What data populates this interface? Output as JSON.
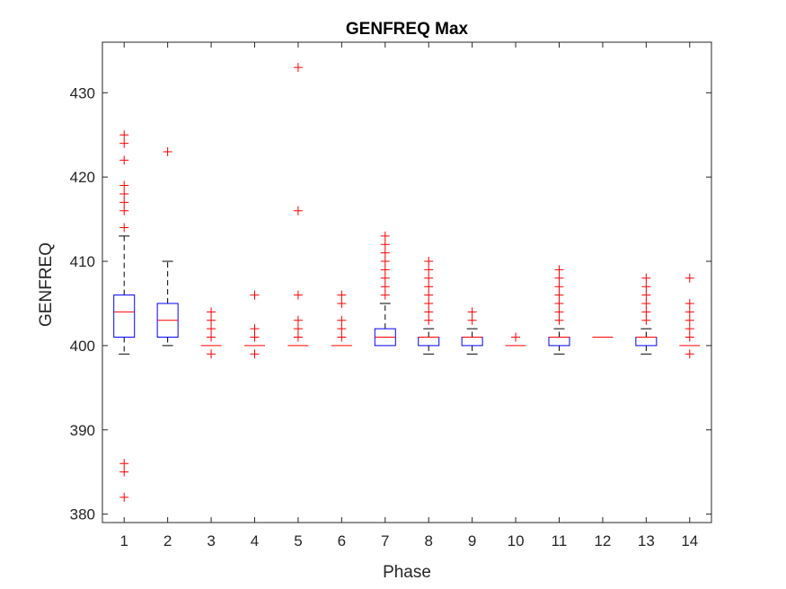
{
  "chart_data": {
    "type": "boxplot",
    "title": "GENFREQ Max",
    "xlabel": "Phase",
    "ylabel": "GENFREQ",
    "ylim": [
      379,
      436
    ],
    "yticks": [
      "380",
      "390",
      "400",
      "410",
      "420",
      "430"
    ],
    "categories": [
      "1",
      "2",
      "3",
      "4",
      "5",
      "6",
      "7",
      "8",
      "9",
      "10",
      "11",
      "12",
      "13",
      "14"
    ],
    "boxes": [
      {
        "category": "1",
        "whisker_low": 399,
        "q1": 401,
        "median": 404,
        "q3": 406,
        "whisker_high": 413,
        "outliers": [
          414,
          416,
          417,
          418,
          419,
          422,
          424,
          425,
          382,
          385,
          386
        ]
      },
      {
        "category": "2",
        "whisker_low": 400,
        "q1": 401,
        "median": 403,
        "q3": 405,
        "whisker_high": 410,
        "outliers": [
          423
        ]
      },
      {
        "category": "3",
        "whisker_low": 400,
        "q1": 400,
        "median": 400,
        "q3": 400,
        "whisker_high": 400,
        "outliers": [
          399,
          401,
          402,
          403,
          404
        ]
      },
      {
        "category": "4",
        "whisker_low": 400,
        "q1": 400,
        "median": 400,
        "q3": 400,
        "whisker_high": 400,
        "outliers": [
          399,
          401,
          402,
          406
        ]
      },
      {
        "category": "5",
        "whisker_low": 400,
        "q1": 400,
        "median": 400,
        "q3": 400,
        "whisker_high": 400,
        "outliers": [
          401,
          402,
          403,
          406,
          416,
          433
        ]
      },
      {
        "category": "6",
        "whisker_low": 400,
        "q1": 400,
        "median": 400,
        "q3": 400,
        "whisker_high": 400,
        "outliers": [
          401,
          402,
          403,
          405,
          406
        ]
      },
      {
        "category": "7",
        "whisker_low": 400,
        "q1": 400,
        "median": 401,
        "q3": 402,
        "whisker_high": 405,
        "outliers": [
          406,
          407,
          408,
          409,
          410,
          411,
          412,
          413
        ]
      },
      {
        "category": "8",
        "whisker_low": 399,
        "q1": 400,
        "median": 401,
        "q3": 401,
        "whisker_high": 402,
        "outliers": [
          403,
          404,
          405,
          406,
          407,
          408,
          409,
          410
        ]
      },
      {
        "category": "9",
        "whisker_low": 399,
        "q1": 400,
        "median": 401,
        "q3": 401,
        "whisker_high": 402,
        "outliers": [
          403,
          404
        ]
      },
      {
        "category": "10",
        "whisker_low": 400,
        "q1": 400,
        "median": 400,
        "q3": 400,
        "whisker_high": 400,
        "outliers": [
          401
        ]
      },
      {
        "category": "11",
        "whisker_low": 399,
        "q1": 400,
        "median": 401,
        "q3": 401,
        "whisker_high": 402,
        "outliers": [
          403,
          404,
          405,
          406,
          407,
          408,
          409
        ]
      },
      {
        "category": "12",
        "whisker_low": 401,
        "q1": 401,
        "median": 401,
        "q3": 401,
        "whisker_high": 401,
        "outliers": []
      },
      {
        "category": "13",
        "whisker_low": 399,
        "q1": 400,
        "median": 401,
        "q3": 401,
        "whisker_high": 402,
        "outliers": [
          403,
          404,
          405,
          406,
          407,
          408
        ]
      },
      {
        "category": "14",
        "whisker_low": 400,
        "q1": 400,
        "median": 400,
        "q3": 400,
        "whisker_high": 400,
        "outliers": [
          399,
          401,
          402,
          403,
          404,
          405,
          408
        ]
      }
    ],
    "colors": {
      "box": "#0000ff",
      "median": "#ff0000",
      "outlier": "#ff0000",
      "whisker": "#000000"
    }
  }
}
